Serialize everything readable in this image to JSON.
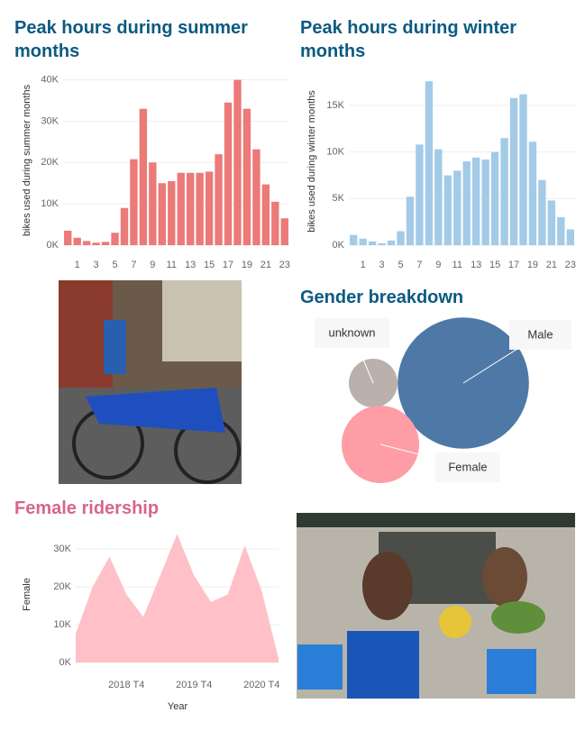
{
  "chart_data": [
    {
      "type": "bar",
      "title": "Peak hours during summer months",
      "y_label": "bikes used during summer months",
      "color": "#eb7a78",
      "categories": [
        null,
        "1",
        null,
        "3",
        null,
        "5",
        null,
        "7",
        null,
        "9",
        null,
        "11",
        null,
        "13",
        null,
        "15",
        null,
        "17",
        null,
        "19",
        null,
        "21",
        null,
        "23"
      ],
      "values": [
        3500,
        1800,
        1000,
        600,
        800,
        3000,
        9000,
        20800,
        33000,
        20000,
        15000,
        15500,
        17500,
        17500,
        17500,
        17800,
        22000,
        34500,
        40000,
        33000,
        23200,
        14700,
        10500,
        6500
      ],
      "ylim": [
        0,
        41000
      ],
      "yticks": [
        {
          "value": 0,
          "label": "0K"
        },
        {
          "value": 10000,
          "label": "10K"
        },
        {
          "value": 20000,
          "label": "20K"
        },
        {
          "value": 30000,
          "label": "30K"
        },
        {
          "value": 40000,
          "label": "40K"
        }
      ],
      "grid": true
    },
    {
      "type": "bar",
      "title": "Peak hours during winter months",
      "y_label": "bikes used during winter months",
      "color": "#a3cbe8",
      "categories": [
        null,
        "1",
        null,
        "3",
        null,
        "5",
        null,
        "7",
        null,
        "9",
        null,
        "11",
        null,
        "13",
        null,
        "15",
        null,
        "17",
        null,
        "19",
        null,
        "21",
        null,
        "23"
      ],
      "values": [
        1100,
        700,
        400,
        200,
        500,
        1500,
        5200,
        10800,
        17600,
        10300,
        7500,
        8000,
        9000,
        9400,
        9200,
        10000,
        11500,
        15800,
        16200,
        11100,
        7000,
        4800,
        3000,
        1700
      ],
      "ylim": [
        0,
        18000
      ],
      "yticks": [
        {
          "value": 0,
          "label": "0K"
        },
        {
          "value": 5000,
          "label": "5K"
        },
        {
          "value": 10000,
          "label": "10K"
        },
        {
          "value": 15000,
          "label": "15K"
        }
      ],
      "grid": true
    },
    {
      "type": "bubble",
      "title": "Gender breakdown",
      "categories": [
        "unknown",
        "Male",
        "Female"
      ],
      "values": [
        730,
        5300,
        1850
      ],
      "colors": [
        "#bab0ac",
        "#4e79a7",
        "#ff9da7"
      ]
    },
    {
      "type": "area",
      "title": "Female ridership",
      "y_label": "Female",
      "x_label": "Year",
      "color": "#ffc0c7",
      "categories": [
        null,
        null,
        null,
        "2018 T4",
        null,
        null,
        null,
        "2019 T4",
        null,
        null,
        null,
        "2020 T4",
        null
      ],
      "values": [
        7600,
        20000,
        28000,
        18000,
        12000,
        23000,
        34000,
        23000,
        16000,
        18000,
        31000,
        19000,
        1000
      ],
      "ylim": [
        0,
        36000
      ],
      "yticks": [
        {
          "value": 0,
          "label": "0K"
        },
        {
          "value": 10000,
          "label": "10K"
        },
        {
          "value": 20000,
          "label": "20K"
        },
        {
          "value": 30000,
          "label": "30K"
        }
      ],
      "grid": true
    }
  ]
}
